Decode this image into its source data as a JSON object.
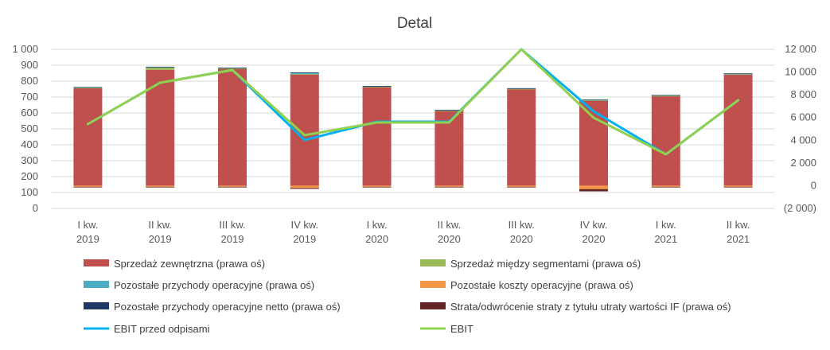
{
  "chart_data": {
    "type": "bar",
    "title": "Detal",
    "categories": [
      [
        "I kw.",
        "2019"
      ],
      [
        "II kw.",
        "2019"
      ],
      [
        "III kw.",
        "2019"
      ],
      [
        "IV kw.",
        "2019"
      ],
      [
        "I kw.",
        "2020"
      ],
      [
        "II kw.",
        "2020"
      ],
      [
        "III kw.",
        "2020"
      ],
      [
        "IV kw.",
        "2020"
      ],
      [
        "I kw.",
        "2021"
      ],
      [
        "II kw.",
        "2021"
      ]
    ],
    "y_left": {
      "min": 0,
      "max": 1000,
      "step": 100,
      "tick_labels": [
        "0",
        "100",
        "200",
        "300",
        "400",
        "500",
        "600",
        "700",
        "800",
        "900",
        "1 000"
      ]
    },
    "y_right": {
      "min": -2000,
      "max": 12000,
      "step": 2000,
      "tick_labels": [
        "(2 000)",
        "0",
        "2 000",
        "4 000",
        "6 000",
        "8 000",
        "10 000",
        "12 000"
      ]
    },
    "grid": true,
    "legend_position": "bottom",
    "series": [
      {
        "name": "Sprzedaż zewnętrzna (prawa oś)",
        "kind": "bar",
        "axis": "right",
        "color": "#C0504D",
        "values": [
          8600,
          10200,
          10300,
          9800,
          8700,
          6600,
          8500,
          7500,
          7900,
          9800
        ]
      },
      {
        "name": "Sprzedaż między segmentami (prawa oś)",
        "kind": "bar",
        "axis": "right",
        "color": "#9BBB59",
        "values": [
          20,
          200,
          20,
          20,
          10,
          10,
          20,
          10,
          10,
          10
        ]
      },
      {
        "name": "Pozostałe przychody operacyjne (prawa oś)",
        "kind": "bar",
        "axis": "right",
        "color": "#4BACC6",
        "values": [
          50,
          60,
          60,
          80,
          60,
          50,
          50,
          50,
          60,
          60
        ]
      },
      {
        "name": "Pozostałe koszty operacyjne (prawa oś)",
        "kind": "bar",
        "axis": "right",
        "color": "#F79646",
        "values": [
          -100,
          -100,
          -100,
          -200,
          -100,
          -100,
          -100,
          -300,
          -100,
          -100
        ]
      },
      {
        "name": "Pozostałe przychody operacyjne netto (prawa oś)",
        "kind": "bar",
        "axis": "right",
        "color": "#1F3864",
        "values": [
          10,
          10,
          10,
          60,
          10,
          10,
          10,
          10,
          10,
          10
        ]
      },
      {
        "name": "Strata/odwrócenie straty z tytułu utraty wartości IF (prawa oś)",
        "kind": "bar",
        "axis": "right",
        "color": "#632523",
        "values": [
          -20,
          -20,
          -20,
          -80,
          -20,
          -20,
          -20,
          -200,
          -20,
          -20
        ]
      },
      {
        "name": "EBIT przed odpisami",
        "kind": "line",
        "axis": "left",
        "color": "#00B0F0",
        "values": [
          530,
          790,
          870,
          430,
          545,
          545,
          1000,
          610,
          340,
          680
        ]
      },
      {
        "name": "EBIT",
        "kind": "line",
        "axis": "left",
        "color": "#92D050",
        "values": [
          530,
          790,
          870,
          460,
          540,
          540,
          1000,
          570,
          340,
          680
        ]
      }
    ]
  }
}
